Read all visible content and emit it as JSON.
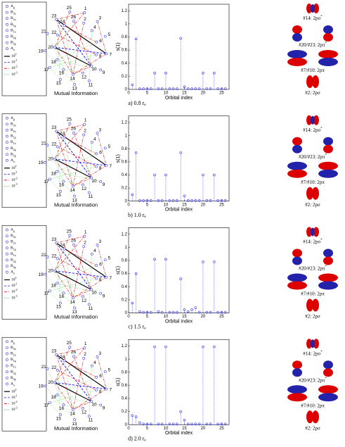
{
  "legend": [
    {
      "text": "A",
      "sub": "g"
    },
    {
      "text": "B",
      "sub": "3u"
    },
    {
      "text": "B",
      "sub": "2u"
    },
    {
      "text": "B",
      "sub": "1g"
    },
    {
      "text": "B",
      "sub": "1u"
    },
    {
      "text": "B",
      "sub": "2g"
    },
    {
      "text": "B",
      "sub": "3g"
    },
    {
      "text": "A",
      "sub": "u"
    }
  ],
  "strength_legend": [
    {
      "text": "10",
      "sup": "0"
    },
    {
      "text": "10",
      "sup": "-1"
    },
    {
      "text": "10",
      "sup": "-2"
    },
    {
      "text": "10",
      "sup": "-3"
    }
  ],
  "network": {
    "title": "Mutual Information",
    "nodes": [
      "1",
      "2",
      "3",
      "4",
      "5",
      "6",
      "7",
      "8",
      "9",
      "10",
      "11",
      "12",
      "13",
      "14",
      "15",
      "16",
      "17",
      "18",
      "19",
      "20",
      "21",
      "22",
      "23",
      "24",
      "25",
      "26"
    ]
  },
  "orbitals": [
    {
      "text": "#14: 2pσ",
      "sup": "*"
    },
    {
      "text": "#20/#23: 2pπ",
      "sup": "*"
    },
    {
      "text": "#7/#10: 2pπ"
    },
    {
      "text": "#2: 2pσ"
    }
  ],
  "chart_data": [
    {
      "type": "stem",
      "caption": {
        "text": "a) 0.8 r",
        "sub": "e"
      },
      "xlabel": "Orbital index",
      "ylabel": "s(1)",
      "color": "#3a3aff",
      "x": [
        1,
        2,
        3,
        4,
        5,
        6,
        7,
        8,
        9,
        10,
        11,
        12,
        13,
        14,
        15,
        16,
        17,
        18,
        19,
        20,
        21,
        22,
        23,
        24,
        25,
        26
      ],
      "values": [
        0.07,
        0.77,
        0.01,
        0.01,
        0.01,
        0.01,
        0.25,
        0.01,
        0.01,
        0.25,
        0.01,
        0.01,
        0.01,
        0.78,
        0.04,
        0.01,
        0.01,
        0.01,
        0.01,
        0.25,
        0.01,
        0.01,
        0.25,
        0.01,
        0.01,
        0.01
      ],
      "xlim": [
        0,
        27
      ],
      "xticks": [
        0,
        5,
        10,
        15,
        20,
        25
      ],
      "ylim": [
        0,
        1.3
      ],
      "yticks": [
        0,
        0.2,
        0.4,
        0.6,
        0.8,
        1,
        1.2
      ]
    },
    {
      "type": "stem",
      "caption": {
        "text": "b) 1.0 r",
        "sub": "e"
      },
      "xlabel": "Orbital index",
      "ylabel": "s(1)",
      "color": "#3a3aff",
      "x": [
        1,
        2,
        3,
        4,
        5,
        6,
        7,
        8,
        9,
        10,
        11,
        12,
        13,
        14,
        15,
        16,
        17,
        18,
        19,
        20,
        21,
        22,
        23,
        24,
        25,
        26
      ],
      "values": [
        0.1,
        0.74,
        0.01,
        0.01,
        0.01,
        0.01,
        0.4,
        0.01,
        0.01,
        0.4,
        0.01,
        0.01,
        0.01,
        0.74,
        0.08,
        0.01,
        0.01,
        0.01,
        0.01,
        0.4,
        0.01,
        0.01,
        0.4,
        0.01,
        0.01,
        0.01
      ],
      "xlim": [
        0,
        27
      ],
      "xticks": [
        0,
        5,
        10,
        15,
        20,
        25
      ],
      "ylim": [
        0,
        1.3
      ],
      "yticks": [
        0,
        0.2,
        0.4,
        0.6,
        0.8,
        1,
        1.2
      ]
    },
    {
      "type": "stem",
      "caption": {
        "text": "c) 1.5 r",
        "sub": "e"
      },
      "xlabel": "Orbital index",
      "ylabel": "s(1)",
      "color": "#3a3aff",
      "x": [
        1,
        2,
        3,
        4,
        5,
        6,
        7,
        8,
        9,
        10,
        11,
        12,
        13,
        14,
        15,
        16,
        17,
        18,
        19,
        20,
        21,
        22,
        23,
        24,
        25,
        26
      ],
      "values": [
        0.15,
        0.6,
        0.02,
        0.01,
        0.01,
        0.01,
        0.82,
        0.02,
        0.01,
        0.82,
        0.01,
        0.01,
        0.01,
        0.52,
        0.05,
        0.02,
        0.05,
        0.08,
        0.01,
        0.78,
        0.01,
        0.01,
        0.78,
        0.01,
        0.01,
        0.01
      ],
      "xlim": [
        0,
        27
      ],
      "xticks": [
        0,
        5,
        10,
        15,
        20,
        25
      ],
      "ylim": [
        0,
        1.3
      ],
      "yticks": [
        0,
        0.2,
        0.4,
        0.6,
        0.8,
        1,
        1.2
      ]
    },
    {
      "type": "stem",
      "caption": {
        "text": "d) 2.0 r",
        "sub": "e"
      },
      "xlabel": "Orbital index",
      "ylabel": "s(1)",
      "color": "#3a3aff",
      "x": [
        1,
        2,
        3,
        4,
        5,
        6,
        7,
        8,
        9,
        10,
        11,
        12,
        13,
        14,
        15,
        16,
        17,
        18,
        19,
        20,
        21,
        22,
        23,
        24,
        25,
        26
      ],
      "values": [
        0.14,
        0.12,
        0.03,
        0.01,
        0.01,
        0.01,
        1.19,
        0.01,
        0.01,
        1.19,
        0.01,
        0.01,
        0.01,
        0.2,
        0.07,
        0.01,
        0.01,
        0.01,
        0.01,
        1.19,
        0.01,
        0.01,
        1.19,
        0.01,
        0.01,
        0.01
      ],
      "xlim": [
        0,
        27
      ],
      "xticks": [
        0,
        5,
        10,
        15,
        20,
        25
      ],
      "ylim": [
        0,
        1.3
      ],
      "yticks": [
        0,
        0.2,
        0.4,
        0.6,
        0.8,
        1,
        1.2
      ]
    }
  ]
}
